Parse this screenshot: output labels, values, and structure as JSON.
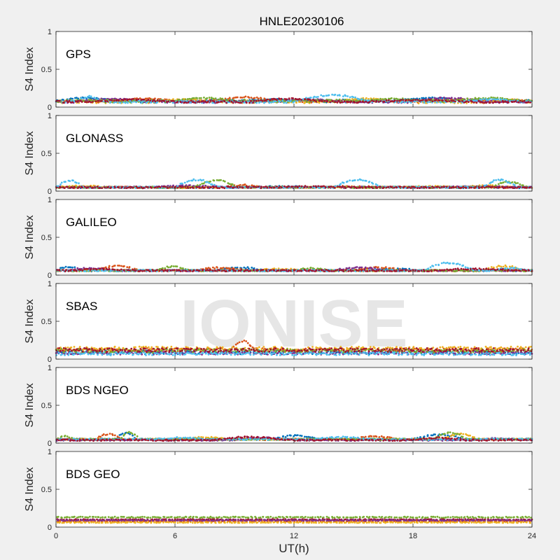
{
  "title": "HNLE20230106",
  "watermark": "IONISE",
  "colors": {
    "figure_bg": "#f0f0f0",
    "axes_bg": "#ffffff",
    "axis_line": "#262626",
    "watermark": "#e6e6e6",
    "series_palette": [
      "#0072bd",
      "#d95319",
      "#edb120",
      "#7e2f8e",
      "#77ac30",
      "#4dbeee",
      "#a2142f"
    ]
  },
  "chart_data": [
    {
      "type": "scatter",
      "panel_label": "GPS",
      "ylabel": "S4 Index",
      "xlabel": "",
      "xlim": [
        0,
        24
      ],
      "ylim": [
        0,
        1
      ],
      "xticks": [
        "0",
        "6",
        "12",
        "18",
        "24"
      ],
      "yticks": [
        "0",
        "0.5",
        "1"
      ],
      "grid": false,
      "series": [
        {
          "color": "#0072bd",
          "level": 0.08,
          "spread": 0.04,
          "arcs": [
            [
              0.0,
              3.5,
              0.12
            ],
            [
              9.0,
              13.0,
              0.1
            ],
            [
              17.0,
              21.0,
              0.12
            ]
          ]
        },
        {
          "color": "#d95319",
          "level": 0.08,
          "spread": 0.04,
          "arcs": [
            [
              3.0,
              6.5,
              0.11
            ],
            [
              8.0,
              11.5,
              0.13
            ],
            [
              19.0,
              22.5,
              0.1
            ]
          ]
        },
        {
          "color": "#edb120",
          "level": 0.07,
          "spread": 0.04,
          "arcs": [
            [
              5.0,
              8.5,
              0.1
            ],
            [
              14.0,
              17.5,
              0.11
            ],
            [
              22.0,
              24.0,
              0.1
            ]
          ]
        },
        {
          "color": "#7e2f8e",
          "level": 0.07,
          "spread": 0.03,
          "arcs": [
            [
              1.0,
              5.0,
              0.11
            ],
            [
              11.0,
              15.0,
              0.1
            ],
            [
              18.0,
              22.0,
              0.12
            ]
          ]
        },
        {
          "color": "#77ac30",
          "level": 0.08,
          "spread": 0.04,
          "arcs": [
            [
              6.0,
              9.5,
              0.12
            ],
            [
              15.5,
              19.0,
              0.11
            ],
            [
              20.0,
              24.0,
              0.12
            ]
          ]
        },
        {
          "color": "#4dbeee",
          "level": 0.07,
          "spread": 0.03,
          "arcs": [
            [
              1.0,
              2.5,
              0.14
            ],
            [
              12.0,
              16.5,
              0.16
            ],
            [
              20.5,
              24.0,
              0.1
            ]
          ]
        },
        {
          "color": "#a2142f",
          "level": 0.07,
          "spread": 0.03,
          "arcs": [
            [
              2.0,
              6.0,
              0.1
            ],
            [
              10.0,
              14.0,
              0.11
            ],
            [
              16.0,
              21.0,
              0.09
            ]
          ]
        }
      ]
    },
    {
      "type": "scatter",
      "panel_label": "GLONASS",
      "ylabel": "S4 Index",
      "xlabel": "",
      "xlim": [
        0,
        24
      ],
      "ylim": [
        0,
        1
      ],
      "xticks": [
        "0",
        "6",
        "12",
        "18",
        "24"
      ],
      "yticks": [
        "0",
        "0.5",
        "1"
      ],
      "grid": false,
      "series": [
        {
          "color": "#0072bd",
          "level": 0.05,
          "spread": 0.02,
          "arcs": [
            [
              0.0,
              4.0,
              0.05
            ],
            [
              10.0,
              14.0,
              0.06
            ],
            [
              18.0,
              22.0,
              0.05
            ]
          ]
        },
        {
          "color": "#d95319",
          "level": 0.05,
          "spread": 0.02,
          "arcs": [
            [
              1.0,
              5.0,
              0.05
            ],
            [
              8.5,
              10.5,
              0.08
            ],
            [
              13.0,
              17.0,
              0.06
            ]
          ]
        },
        {
          "color": "#edb120",
          "level": 0.05,
          "spread": 0.02,
          "arcs": [
            [
              0.0,
              3.0,
              0.07
            ],
            [
              17.0,
              21.0,
              0.06
            ],
            [
              20.0,
              24.0,
              0.07
            ]
          ]
        },
        {
          "color": "#7e2f8e",
          "level": 0.05,
          "spread": 0.02,
          "arcs": [
            [
              5.0,
              9.0,
              0.07
            ],
            [
              19.0,
              24.0,
              0.06
            ]
          ]
        },
        {
          "color": "#77ac30",
          "level": 0.05,
          "spread": 0.02,
          "arcs": [
            [
              7.0,
              9.5,
              0.14
            ],
            [
              22.0,
              24.0,
              0.12
            ]
          ]
        },
        {
          "color": "#4dbeee",
          "level": 0.05,
          "spread": 0.02,
          "arcs": [
            [
              0.0,
              1.6,
              0.14
            ],
            [
              6.0,
              8.5,
              0.15
            ],
            [
              14.0,
              16.8,
              0.15
            ],
            [
              21.5,
              23.5,
              0.15
            ]
          ]
        },
        {
          "color": "#a2142f",
          "level": 0.05,
          "spread": 0.02,
          "arcs": [
            [
              3.0,
              7.0,
              0.05
            ],
            [
              11.0,
              15.0,
              0.06
            ]
          ]
        }
      ]
    },
    {
      "type": "scatter",
      "panel_label": "GALILEO",
      "ylabel": "S4 Index",
      "xlabel": "",
      "xlim": [
        0,
        24
      ],
      "ylim": [
        0,
        1
      ],
      "xticks": [
        "0",
        "6",
        "12",
        "18",
        "24"
      ],
      "yticks": [
        "0",
        "0.5",
        "1"
      ],
      "grid": false,
      "series": [
        {
          "color": "#0072bd",
          "level": 0.06,
          "spread": 0.02,
          "arcs": [
            [
              0.0,
              1.5,
              0.11
            ],
            [
              8.0,
              11.0,
              0.1
            ],
            [
              16.0,
              19.0,
              0.08
            ]
          ]
        },
        {
          "color": "#d95319",
          "level": 0.06,
          "spread": 0.02,
          "arcs": [
            [
              2.0,
              4.5,
              0.12
            ],
            [
              7.0,
              10.0,
              0.1
            ],
            [
              15.0,
              18.0,
              0.1
            ]
          ]
        },
        {
          "color": "#edb120",
          "level": 0.06,
          "spread": 0.02,
          "arcs": [
            [
              10.0,
              13.0,
              0.08
            ],
            [
              21.5,
              24.0,
              0.12
            ]
          ]
        },
        {
          "color": "#7e2f8e",
          "level": 0.06,
          "spread": 0.02,
          "arcs": [
            [
              0.5,
              3.0,
              0.09
            ],
            [
              14.0,
              17.0,
              0.1
            ]
          ]
        },
        {
          "color": "#77ac30",
          "level": 0.06,
          "spread": 0.02,
          "arcs": [
            [
              5.0,
              7.0,
              0.11
            ],
            [
              12.0,
              14.0,
              0.09
            ]
          ]
        },
        {
          "color": "#4dbeee",
          "level": 0.06,
          "spread": 0.02,
          "arcs": [
            [
              18.5,
              21.5,
              0.16
            ],
            [
              22.0,
              24.0,
              0.09
            ]
          ]
        },
        {
          "color": "#a2142f",
          "level": 0.06,
          "spread": 0.02,
          "arcs": [
            [
              1.0,
              4.0,
              0.08
            ],
            [
              19.0,
              24.0,
              0.08
            ]
          ]
        }
      ]
    },
    {
      "type": "scatter",
      "panel_label": "SBAS",
      "ylabel": "S4 Index",
      "xlabel": "",
      "xlim": [
        0,
        24
      ],
      "ylim": [
        0,
        1
      ],
      "xticks": [
        "0",
        "6",
        "12",
        "18",
        "24"
      ],
      "yticks": [
        "0",
        "0.5",
        "1"
      ],
      "grid": false,
      "series": [
        {
          "color": "#0072bd",
          "level": 0.09,
          "spread": 0.05,
          "arcs": []
        },
        {
          "color": "#d95319",
          "level": 0.12,
          "spread": 0.05,
          "arcs": [
            [
              8.8,
              10.2,
              0.24
            ]
          ]
        },
        {
          "color": "#edb120",
          "level": 0.14,
          "spread": 0.05,
          "arcs": []
        },
        {
          "color": "#7e2f8e",
          "level": 0.08,
          "spread": 0.04,
          "arcs": []
        },
        {
          "color": "#77ac30",
          "level": 0.11,
          "spread": 0.05,
          "arcs": []
        },
        {
          "color": "#4dbeee",
          "level": 0.07,
          "spread": 0.04,
          "arcs": []
        },
        {
          "color": "#a2142f",
          "level": 0.12,
          "spread": 0.05,
          "arcs": []
        }
      ]
    },
    {
      "type": "scatter",
      "panel_label": "BDS NGEO",
      "ylabel": "S4 Index",
      "xlabel": "",
      "xlim": [
        0,
        24
      ],
      "ylim": [
        0,
        1
      ],
      "xticks": [
        "0",
        "6",
        "12",
        "18",
        "24"
      ],
      "yticks": [
        "0",
        "0.5",
        "1"
      ],
      "grid": false,
      "series": [
        {
          "color": "#0072bd",
          "level": 0.05,
          "spread": 0.02,
          "arcs": [
            [
              3.0,
              4.2,
              0.13
            ],
            [
              11.0,
              13.5,
              0.1
            ],
            [
              18.0,
              21.0,
              0.11
            ]
          ]
        },
        {
          "color": "#d95319",
          "level": 0.05,
          "spread": 0.02,
          "arcs": [
            [
              2.0,
              3.5,
              0.12
            ],
            [
              15.0,
              17.5,
              0.09
            ]
          ]
        },
        {
          "color": "#edb120",
          "level": 0.05,
          "spread": 0.02,
          "arcs": [
            [
              6.0,
              9.0,
              0.08
            ],
            [
              19.5,
              21.5,
              0.12
            ]
          ]
        },
        {
          "color": "#7e2f8e",
          "level": 0.04,
          "spread": 0.02,
          "arcs": [
            [
              9.0,
              12.0,
              0.07
            ],
            [
              21.0,
              24.0,
              0.06
            ]
          ]
        },
        {
          "color": "#77ac30",
          "level": 0.05,
          "spread": 0.02,
          "arcs": [
            [
              0.0,
              1.0,
              0.09
            ],
            [
              3.2,
              4.4,
              0.14
            ],
            [
              19.0,
              21.0,
              0.14
            ]
          ]
        },
        {
          "color": "#4dbeee",
          "level": 0.05,
          "spread": 0.02,
          "arcs": [
            [
              5.0,
              8.0,
              0.07
            ],
            [
              13.0,
              16.0,
              0.08
            ]
          ]
        },
        {
          "color": "#a2142f",
          "level": 0.04,
          "spread": 0.02,
          "arcs": [
            [
              8.0,
              12.0,
              0.08
            ],
            [
              18.0,
              21.0,
              0.07
            ]
          ]
        }
      ]
    },
    {
      "type": "scatter",
      "panel_label": "BDS GEO",
      "ylabel": "S4 Index",
      "xlabel": "UT(h)",
      "xlim": [
        0,
        24
      ],
      "ylim": [
        0,
        1
      ],
      "xticks": [
        "0",
        "6",
        "12",
        "18",
        "24"
      ],
      "yticks": [
        "0",
        "0.5",
        "1"
      ],
      "grid": false,
      "series": [
        {
          "color": "#77ac30",
          "level": 0.13,
          "spread": 0.015,
          "arcs": []
        },
        {
          "color": "#a2142f",
          "level": 0.1,
          "spread": 0.01,
          "arcs": []
        },
        {
          "color": "#d95319",
          "level": 0.08,
          "spread": 0.01,
          "arcs": []
        },
        {
          "color": "#edb120",
          "level": 0.06,
          "spread": 0.01,
          "arcs": []
        },
        {
          "color": "#7e2f8e",
          "level": 0.09,
          "spread": 0.01,
          "arcs": []
        }
      ]
    }
  ]
}
